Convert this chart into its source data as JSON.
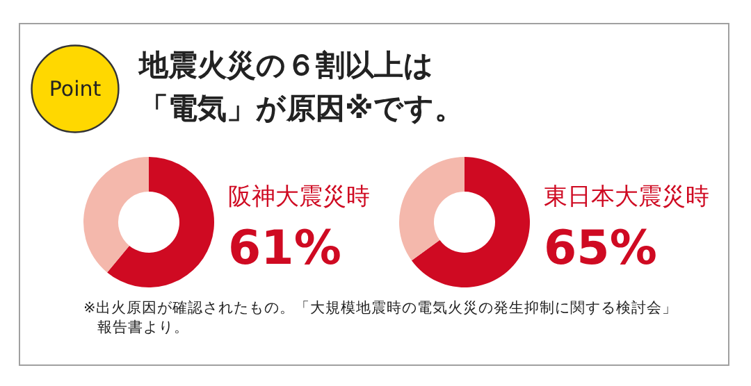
{
  "chart_data": [
    {
      "type": "other",
      "title": "地震火災の６割以上は「電気」が原因※です。",
      "annotations": [
        "Point",
        "※出火原因が確認されたもの。「大規模地震時の電気火災の発生抑制に関する検討会」報告書より。"
      ]
    },
    {
      "type": "donut",
      "title": "阪神大震災時",
      "categories": [
        null,
        null
      ],
      "values": [
        61,
        39
      ],
      "colors": [
        "#cf0a22",
        "#f4b8ac"
      ],
      "value_labels": [
        "61%",
        null
      ]
    },
    {
      "type": "donut",
      "title": "東日本大震災時",
      "categories": [
        null,
        null
      ],
      "values": [
        65,
        35
      ],
      "colors": [
        "#cf0a22",
        "#f4b8ac"
      ],
      "value_labels": [
        "65%",
        null
      ]
    }
  ]
}
